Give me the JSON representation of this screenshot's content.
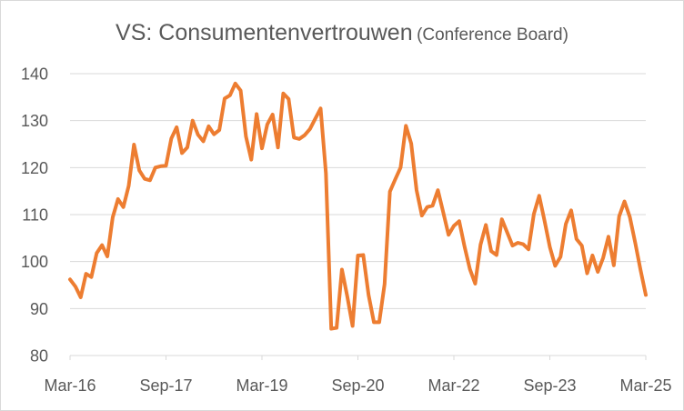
{
  "chart_data": {
    "type": "line",
    "title": "VS: Consumentenvertrouwen",
    "subtitle": "(Conference Board)",
    "xlabel": "",
    "ylabel": "",
    "ylim": [
      80,
      140
    ],
    "yticks": [
      80,
      90,
      100,
      110,
      120,
      130,
      140
    ],
    "x_start": "2016-03",
    "x_end": "2025-03",
    "xtick_labels": [
      "Mar-16",
      "Sep-17",
      "Mar-19",
      "Sep-20",
      "Mar-22",
      "Sep-23",
      "Mar-25"
    ],
    "grid": true,
    "legend": "none",
    "color": "#ED7D31",
    "series": [
      {
        "values": [
          96.2,
          94.7,
          92.4,
          97.4,
          96.7,
          101.8,
          103.5,
          101.1,
          109.4,
          113.3,
          111.6,
          116.1,
          124.9,
          119.4,
          117.6,
          117.3,
          120.0,
          120.3,
          120.4,
          126.2,
          128.6,
          123.1,
          124.3,
          130.0,
          127.0,
          125.6,
          128.8,
          127.1,
          128.0,
          134.7,
          135.4,
          137.9,
          136.4,
          126.6,
          121.7,
          131.4,
          124.1,
          129.2,
          131.3,
          124.3,
          135.8,
          134.6,
          126.4,
          126.1,
          126.9,
          128.2,
          130.4,
          132.6,
          118.8,
          85.7,
          85.9,
          98.3,
          92.6,
          86.3,
          101.3,
          101.4,
          92.9,
          87.1,
          87.1,
          95.2,
          114.9,
          117.5,
          120.0,
          128.9,
          125.1,
          115.2,
          109.8,
          111.6,
          111.9,
          115.2,
          110.5,
          105.7,
          107.6,
          108.6,
          103.2,
          98.4,
          95.3,
          103.6,
          107.8,
          102.2,
          101.4,
          109.0,
          106.2,
          103.4,
          104.0,
          103.7,
          102.6,
          110.1,
          114.0,
          108.7,
          103.1,
          99.1,
          101.0,
          108.0,
          110.9,
          104.8,
          103.4,
          97.5,
          101.3,
          97.8,
          100.8,
          105.3,
          99.2,
          109.6,
          112.8,
          109.5,
          104.1,
          98.3,
          92.9
        ]
      }
    ]
  }
}
